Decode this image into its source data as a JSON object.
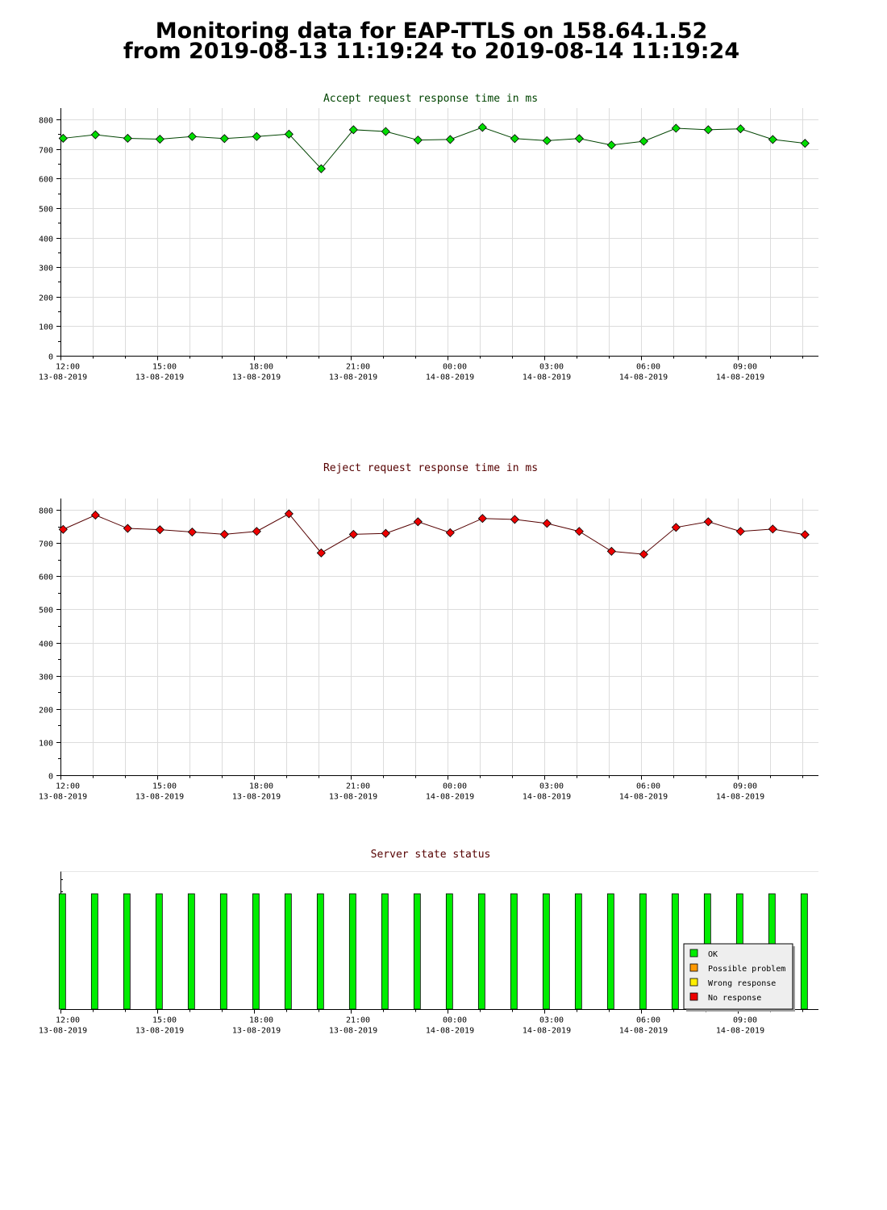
{
  "page": {
    "title_line_1": "Monitoring data for EAP-TTLS on 158.64.1.52",
    "title_line_2": "from 2019-08-13 11:19:24 to 2019-08-14 11:19:24"
  },
  "chart_data": [
    {
      "type": "line",
      "title": "Accept request response time in ms",
      "title_color": "#004400",
      "marker_color": "#00dd00",
      "line_color": "#004400",
      "ylim": [
        0,
        800
      ],
      "y_ticks": [
        "0",
        "100",
        "200",
        "300",
        "400",
        "500",
        "600",
        "700",
        "800"
      ],
      "x_ticks": [
        {
          "time": "12:00",
          "date": "13-08-2019"
        },
        {
          "time": "15:00",
          "date": "13-08-2019"
        },
        {
          "time": "18:00",
          "date": "13-08-2019"
        },
        {
          "time": "21:00",
          "date": "13-08-2019"
        },
        {
          "time": "00:00",
          "date": "14-08-2019"
        },
        {
          "time": "03:00",
          "date": "14-08-2019"
        },
        {
          "time": "06:00",
          "date": "14-08-2019"
        },
        {
          "time": "09:00",
          "date": "14-08-2019"
        }
      ],
      "grid": true,
      "series": [
        {
          "x": [
            "2019-08-13 12:05",
            "2019-08-13 13:05",
            "2019-08-13 14:05",
            "2019-08-13 15:05",
            "2019-08-13 16:05",
            "2019-08-13 17:05",
            "2019-08-13 18:05",
            "2019-08-13 19:05",
            "2019-08-13 20:05",
            "2019-08-13 21:05",
            "2019-08-13 22:05",
            "2019-08-13 23:05",
            "2019-08-14 00:05",
            "2019-08-14 01:05",
            "2019-08-14 02:05",
            "2019-08-14 03:05",
            "2019-08-14 04:05",
            "2019-08-14 05:05",
            "2019-08-14 06:05",
            "2019-08-14 07:05",
            "2019-08-14 08:05",
            "2019-08-14 09:05",
            "2019-08-14 10:05",
            "2019-08-14 11:05"
          ],
          "values": [
            736,
            748,
            736,
            733,
            742,
            735,
            742,
            750,
            633,
            765,
            759,
            730,
            732,
            773,
            735,
            728,
            735,
            713,
            726,
            770,
            765,
            768,
            732,
            719
          ]
        }
      ]
    },
    {
      "type": "line",
      "title": "Reject request response time in ms",
      "title_color": "#550000",
      "marker_color": "#ee0000",
      "line_color": "#550000",
      "ylim": [
        0,
        800
      ],
      "y_ticks": [
        "0",
        "100",
        "200",
        "300",
        "400",
        "500",
        "600",
        "700",
        "800"
      ],
      "x_ticks": [
        {
          "time": "12:00",
          "date": "13-08-2019"
        },
        {
          "time": "15:00",
          "date": "13-08-2019"
        },
        {
          "time": "18:00",
          "date": "13-08-2019"
        },
        {
          "time": "21:00",
          "date": "13-08-2019"
        },
        {
          "time": "00:00",
          "date": "14-08-2019"
        },
        {
          "time": "03:00",
          "date": "14-08-2019"
        },
        {
          "time": "06:00",
          "date": "14-08-2019"
        },
        {
          "time": "09:00",
          "date": "14-08-2019"
        }
      ],
      "grid": true,
      "series": [
        {
          "x": [
            "2019-08-13 12:05",
            "2019-08-13 13:05",
            "2019-08-13 14:05",
            "2019-08-13 15:05",
            "2019-08-13 16:05",
            "2019-08-13 17:05",
            "2019-08-13 18:05",
            "2019-08-13 19:05",
            "2019-08-13 20:05",
            "2019-08-13 21:05",
            "2019-08-13 22:05",
            "2019-08-13 23:05",
            "2019-08-14 00:05",
            "2019-08-14 01:05",
            "2019-08-14 02:05",
            "2019-08-14 03:05",
            "2019-08-14 04:05",
            "2019-08-14 05:05",
            "2019-08-14 06:05",
            "2019-08-14 07:05",
            "2019-08-14 08:05",
            "2019-08-14 09:05",
            "2019-08-14 10:05",
            "2019-08-14 11:05"
          ],
          "values": [
            741,
            784,
            744,
            740,
            733,
            726,
            735,
            788,
            670,
            726,
            729,
            764,
            731,
            774,
            771,
            759,
            735,
            675,
            666,
            747,
            764,
            735,
            742,
            725
          ]
        }
      ]
    },
    {
      "type": "bar",
      "title": "Server state status",
      "title_color": "#550000",
      "bar_color": "#00ee00",
      "x_ticks": [
        {
          "time": "12:00",
          "date": "13-08-2019"
        },
        {
          "time": "15:00",
          "date": "13-08-2019"
        },
        {
          "time": "18:00",
          "date": "13-08-2019"
        },
        {
          "time": "21:00",
          "date": "13-08-2019"
        },
        {
          "time": "00:00",
          "date": "14-08-2019"
        },
        {
          "time": "03:00",
          "date": "14-08-2019"
        },
        {
          "time": "06:00",
          "date": "14-08-2019"
        },
        {
          "time": "09:00",
          "date": "14-08-2019"
        }
      ],
      "x": [
        "2019-08-13 12:05",
        "2019-08-13 13:05",
        "2019-08-13 14:05",
        "2019-08-13 15:05",
        "2019-08-13 16:05",
        "2019-08-13 17:05",
        "2019-08-13 18:05",
        "2019-08-13 19:05",
        "2019-08-13 20:05",
        "2019-08-13 21:05",
        "2019-08-13 22:05",
        "2019-08-13 23:05",
        "2019-08-14 00:05",
        "2019-08-14 01:05",
        "2019-08-14 02:05",
        "2019-08-14 03:05",
        "2019-08-14 04:05",
        "2019-08-14 05:05",
        "2019-08-14 06:05",
        "2019-08-14 07:05",
        "2019-08-14 08:05",
        "2019-08-14 09:05",
        "2019-08-14 10:05",
        "2019-08-14 11:05"
      ],
      "states": [
        "OK",
        "OK",
        "OK",
        "OK",
        "OK",
        "OK",
        "OK",
        "OK",
        "OK",
        "OK",
        "OK",
        "OK",
        "OK",
        "OK",
        "OK",
        "OK",
        "OK",
        "OK",
        "OK",
        "OK",
        "OK",
        "OK",
        "OK",
        "OK"
      ],
      "legend": [
        {
          "label": "OK",
          "color": "#00ee00"
        },
        {
          "label": "Possible problem",
          "color": "#ff9900"
        },
        {
          "label": "Wrong response",
          "color": "#ffee00"
        },
        {
          "label": "No response",
          "color": "#ee0000"
        }
      ]
    }
  ]
}
